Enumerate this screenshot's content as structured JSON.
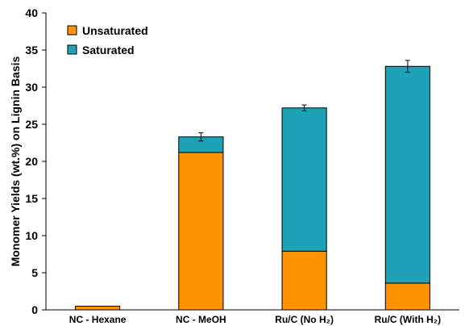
{
  "chart_data": {
    "type": "bar",
    "stacked": true,
    "categories": [
      "NC - Hexane",
      "NC - MeOH",
      "Ru/C (No H₂)",
      "Ru/C (With H₂)"
    ],
    "series": [
      {
        "name": "Unsaturated",
        "color": "#ff9200",
        "values": [
          0.5,
          21.2,
          7.9,
          3.6
        ]
      },
      {
        "name": "Saturated",
        "color": "#1fa2b8",
        "values": [
          0,
          2.1,
          19.3,
          29.2
        ]
      }
    ],
    "error_bars": [
      null,
      0.55,
      0.4,
      0.8
    ],
    "ylabel": "Monomer Yields (wt.%) on Lignin Basis",
    "xlabel": "",
    "ylim": [
      0,
      40
    ],
    "yticks": [
      0,
      5,
      10,
      15,
      20,
      25,
      30,
      35,
      40
    ],
    "grid": false,
    "legend_position": "top-left"
  }
}
